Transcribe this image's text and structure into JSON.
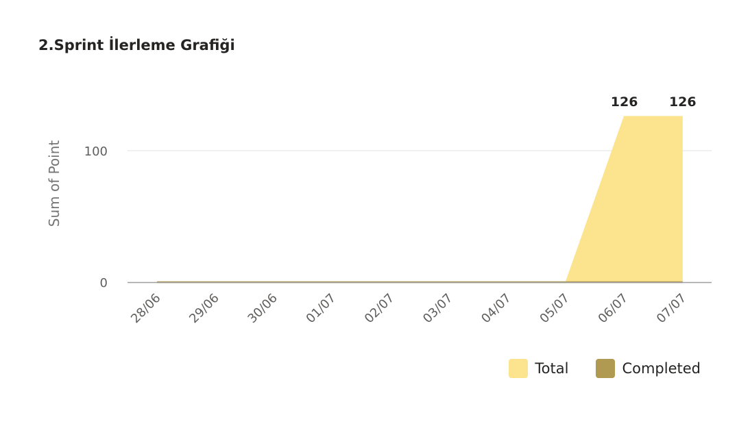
{
  "title": "2.Sprint İlerleme Grafiği",
  "chart_data": {
    "type": "area",
    "title": "2.Sprint İlerleme Grafiği",
    "xlabel": "",
    "ylabel": "Sum of Point",
    "categories": [
      "28/06",
      "29/06",
      "30/06",
      "01/07",
      "02/07",
      "03/07",
      "04/07",
      "05/07",
      "06/07",
      "07/07"
    ],
    "series": [
      {
        "name": "Total",
        "color": "#fce38d",
        "values": [
          0,
          0,
          0,
          0,
          0,
          0,
          0,
          0,
          126,
          126
        ]
      },
      {
        "name": "Completed",
        "color": "#b09a52",
        "values": [
          0,
          0,
          0,
          0,
          0,
          0,
          0,
          0,
          0,
          0
        ]
      }
    ],
    "yticks": [
      0,
      100
    ],
    "ylim": [
      0,
      126
    ],
    "data_labels": [
      {
        "category": "06/07",
        "value": "126"
      },
      {
        "category": "07/07",
        "value": "126"
      }
    ],
    "grid": true,
    "legend_position": "bottom-right"
  }
}
